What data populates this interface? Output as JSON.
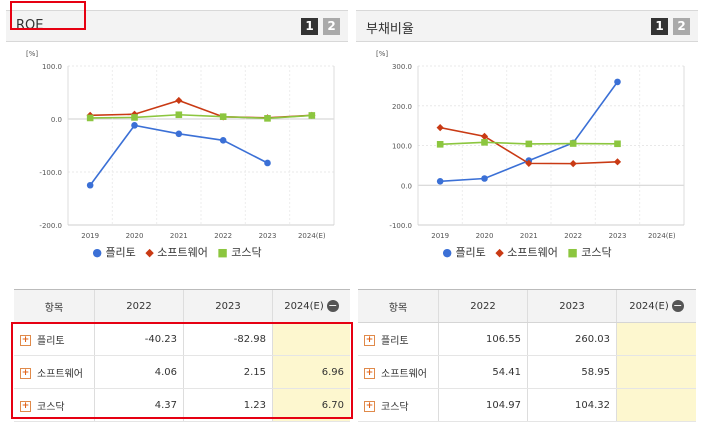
{
  "legend": [
    "플리토",
    "소프트웨어",
    "코스닥"
  ],
  "colors": {
    "플리토": "#3b70d6",
    "소프트웨어": "#c93a14",
    "코스닥": "#8cc63f"
  },
  "table_headers": [
    "항목",
    "2022",
    "2023",
    "2024(E)"
  ],
  "pages": [
    "1",
    "2"
  ],
  "chart_data": [
    {
      "type": "line",
      "title": "ROE",
      "unit": "[%]",
      "x": [
        "2019",
        "2020",
        "2021",
        "2022",
        "2023",
        "2024(E)"
      ],
      "yticks": [
        "100.0",
        "0.0",
        "-100.0",
        "-200.0"
      ],
      "ylim": [
        -200,
        100
      ],
      "series": [
        {
          "name": "플리토",
          "values": [
            -125,
            -12,
            -28,
            -40.23,
            -82.98,
            null
          ]
        },
        {
          "name": "소프트웨어",
          "values": [
            7,
            9,
            35,
            4.06,
            2.15,
            6.96
          ]
        },
        {
          "name": "코스닥",
          "values": [
            2,
            3,
            8,
            4.37,
            1.23,
            6.7
          ]
        }
      ]
    },
    {
      "type": "line",
      "title": "부채비율",
      "unit": "[%]",
      "x": [
        "2019",
        "2020",
        "2021",
        "2022",
        "2023",
        "2024(E)"
      ],
      "yticks": [
        "300.0",
        "200.0",
        "100.0",
        "0.0",
        "-100.0"
      ],
      "ylim": [
        -100,
        300
      ],
      "series": [
        {
          "name": "플리토",
          "values": [
            10,
            17,
            62,
            106.55,
            260.03,
            null
          ]
        },
        {
          "name": "소프트웨어",
          "values": [
            145,
            123,
            55,
            54.41,
            58.95,
            null
          ]
        },
        {
          "name": "코스닥",
          "values": [
            103,
            108,
            104,
            104.97,
            104.32,
            null
          ]
        }
      ]
    }
  ],
  "tables": [
    {
      "rows": [
        {
          "name": "플리토",
          "v2022": "-40.23",
          "v2023": "-82.98",
          "v2024": ""
        },
        {
          "name": "소프트웨어",
          "v2022": "4.06",
          "v2023": "2.15",
          "v2024": "6.96"
        },
        {
          "name": "코스닥",
          "v2022": "4.37",
          "v2023": "1.23",
          "v2024": "6.70"
        }
      ]
    },
    {
      "rows": [
        {
          "name": "플리토",
          "v2022": "106.55",
          "v2023": "260.03",
          "v2024": ""
        },
        {
          "name": "소프트웨어",
          "v2022": "54.41",
          "v2023": "58.95",
          "v2024": ""
        },
        {
          "name": "코스닥",
          "v2022": "104.97",
          "v2023": "104.32",
          "v2024": ""
        }
      ]
    }
  ]
}
